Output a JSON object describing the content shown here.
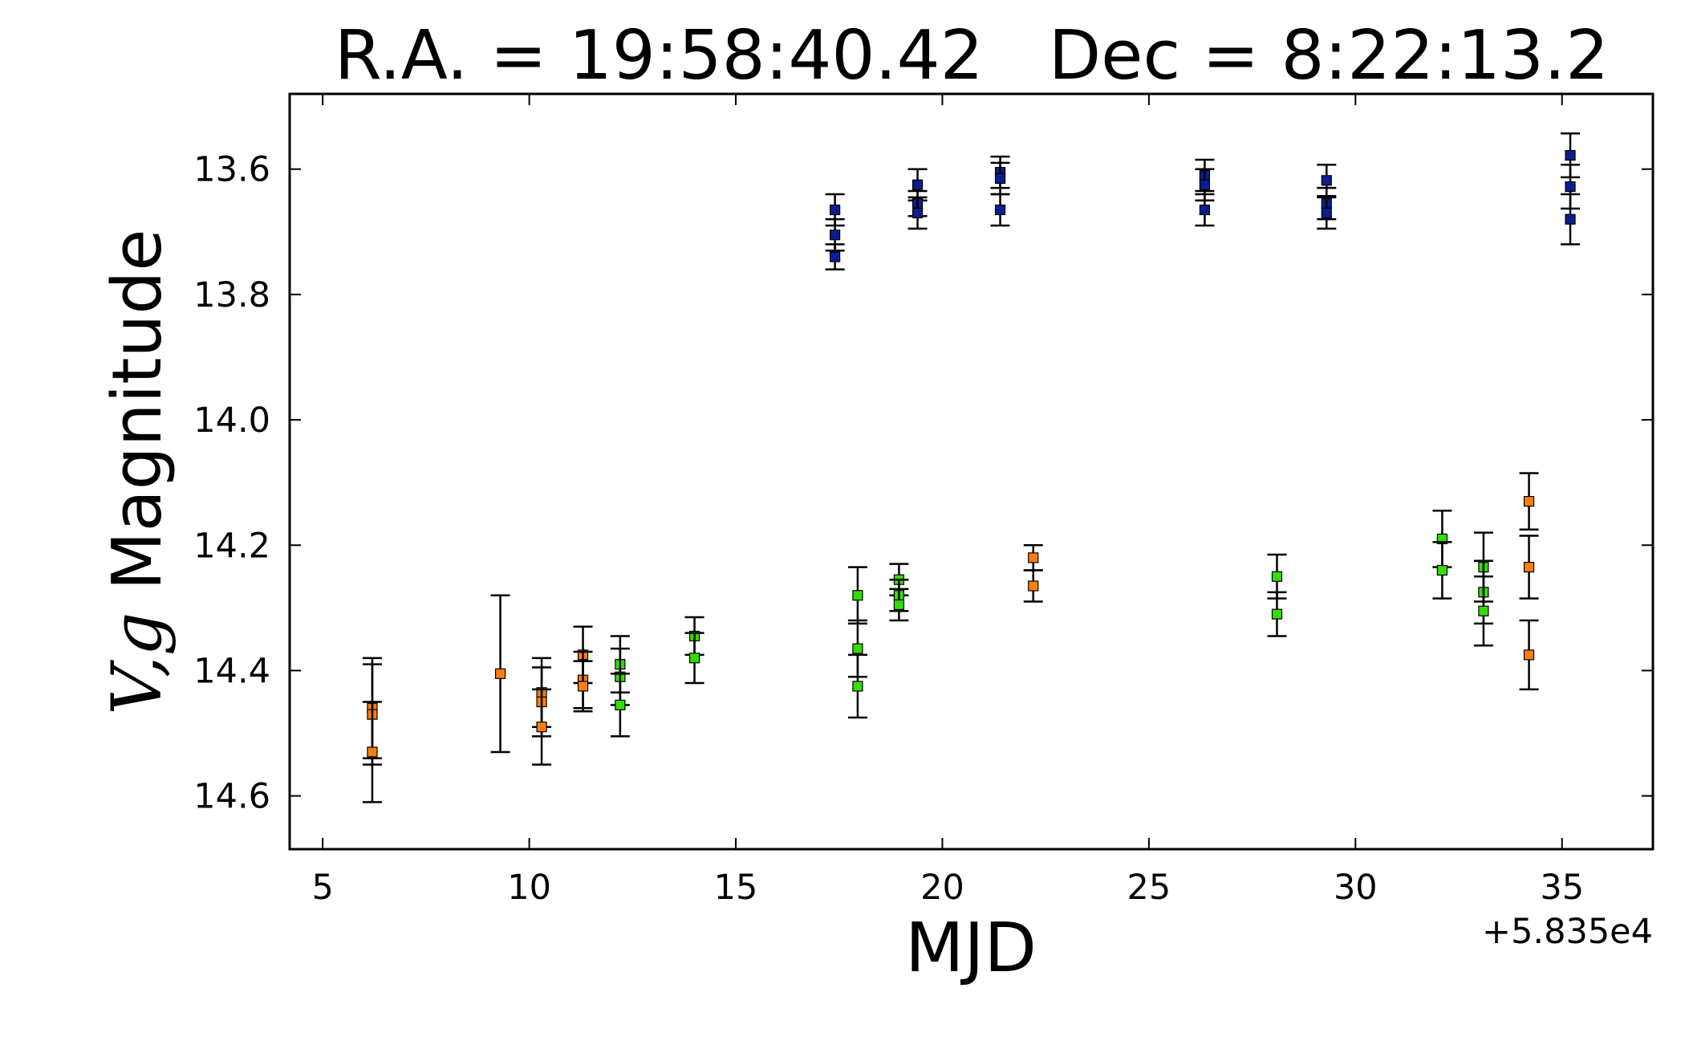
{
  "chart_data": {
    "type": "scatter",
    "title": "R.A. = 19:58:40.42   Dec = 8:22:13.2",
    "xlabel": "MJD",
    "ylabel_main": "V,g",
    "ylabel_rest": " Magnitude",
    "x_offset_label": "+5.835e4",
    "x_offset": 58350,
    "xlim": [
      4.2,
      37.2
    ],
    "ylim": [
      14.685,
      13.48
    ],
    "y_inverted": true,
    "xticks": [
      5,
      10,
      15,
      20,
      25,
      30,
      35
    ],
    "xtick_labels": [
      "5",
      "10",
      "15",
      "20",
      "25",
      "30",
      "35"
    ],
    "yticks": [
      13.6,
      13.8,
      14.0,
      14.2,
      14.4,
      14.6
    ],
    "ytick_labels": [
      "13.6",
      "13.8",
      "14.0",
      "14.2",
      "14.4",
      "14.6"
    ],
    "grid": false,
    "legend": false,
    "series": [
      {
        "color": "#0b1d8f",
        "points": [
          {
            "x": 17.4,
            "y": 13.665,
            "err": 0.025
          },
          {
            "x": 17.4,
            "y": 13.705,
            "err": 0.025
          },
          {
            "x": 17.4,
            "y": 13.74,
            "err": 0.02
          },
          {
            "x": 19.4,
            "y": 13.625,
            "err": 0.025
          },
          {
            "x": 19.4,
            "y": 13.655,
            "err": 0.02
          },
          {
            "x": 19.4,
            "y": 13.67,
            "err": 0.025
          },
          {
            "x": 21.4,
            "y": 13.605,
            "err": 0.025
          },
          {
            "x": 21.4,
            "y": 13.615,
            "err": 0.025
          },
          {
            "x": 21.4,
            "y": 13.665,
            "err": 0.025
          },
          {
            "x": 26.35,
            "y": 13.61,
            "err": 0.025
          },
          {
            "x": 26.35,
            "y": 13.625,
            "err": 0.025
          },
          {
            "x": 26.35,
            "y": 13.665,
            "err": 0.025
          },
          {
            "x": 29.3,
            "y": 13.618,
            "err": 0.025
          },
          {
            "x": 29.3,
            "y": 13.655,
            "err": 0.025
          },
          {
            "x": 29.3,
            "y": 13.67,
            "err": 0.025
          },
          {
            "x": 35.2,
            "y": 13.578,
            "err": 0.035
          },
          {
            "x": 35.2,
            "y": 13.628,
            "err": 0.035
          },
          {
            "x": 35.2,
            "y": 13.68,
            "err": 0.04
          }
        ]
      },
      {
        "color": "#ff7f0e",
        "points": [
          {
            "x": 6.2,
            "y": 14.46,
            "err": 0.08
          },
          {
            "x": 6.2,
            "y": 14.47,
            "err": 0.08
          },
          {
            "x": 6.2,
            "y": 14.53,
            "err": 0.08
          },
          {
            "x": 9.3,
            "y": 14.405,
            "err": 0.125
          },
          {
            "x": 10.3,
            "y": 14.435,
            "err": 0.055
          },
          {
            "x": 10.3,
            "y": 14.45,
            "err": 0.055
          },
          {
            "x": 10.3,
            "y": 14.49,
            "err": 0.06
          },
          {
            "x": 11.3,
            "y": 14.375,
            "err": 0.045
          },
          {
            "x": 11.3,
            "y": 14.415,
            "err": 0.045
          },
          {
            "x": 11.3,
            "y": 14.425,
            "err": 0.04
          },
          {
            "x": 22.2,
            "y": 14.22,
            "err": 0.02
          },
          {
            "x": 22.2,
            "y": 14.265,
            "err": 0.025
          },
          {
            "x": 34.2,
            "y": 14.13,
            "err": 0.045
          },
          {
            "x": 34.2,
            "y": 14.235,
            "err": 0.05
          },
          {
            "x": 34.2,
            "y": 14.375,
            "err": 0.055
          }
        ]
      },
      {
        "color": "#33dd00",
        "points": [
          {
            "x": 12.2,
            "y": 14.39,
            "err": 0.045
          },
          {
            "x": 12.2,
            "y": 14.41,
            "err": 0.045
          },
          {
            "x": 12.2,
            "y": 14.455,
            "err": 0.05
          },
          {
            "x": 14.0,
            "y": 14.345,
            "err": 0.03
          },
          {
            "x": 14.0,
            "y": 14.38,
            "err": 0.04
          },
          {
            "x": 17.95,
            "y": 14.28,
            "err": 0.045
          },
          {
            "x": 17.95,
            "y": 14.365,
            "err": 0.045
          },
          {
            "x": 17.95,
            "y": 14.425,
            "err": 0.05
          },
          {
            "x": 18.95,
            "y": 14.255,
            "err": 0.025
          },
          {
            "x": 18.95,
            "y": 14.28,
            "err": 0.025
          },
          {
            "x": 18.95,
            "y": 14.295,
            "err": 0.025
          },
          {
            "x": 28.1,
            "y": 14.25,
            "err": 0.035
          },
          {
            "x": 28.1,
            "y": 14.31,
            "err": 0.035
          },
          {
            "x": 32.1,
            "y": 14.19,
            "err": 0.045
          },
          {
            "x": 32.1,
            "y": 14.24,
            "err": 0.045
          },
          {
            "x": 33.1,
            "y": 14.235,
            "err": 0.055
          },
          {
            "x": 33.1,
            "y": 14.275,
            "err": 0.05
          },
          {
            "x": 33.1,
            "y": 14.305,
            "err": 0.055
          }
        ]
      }
    ]
  }
}
